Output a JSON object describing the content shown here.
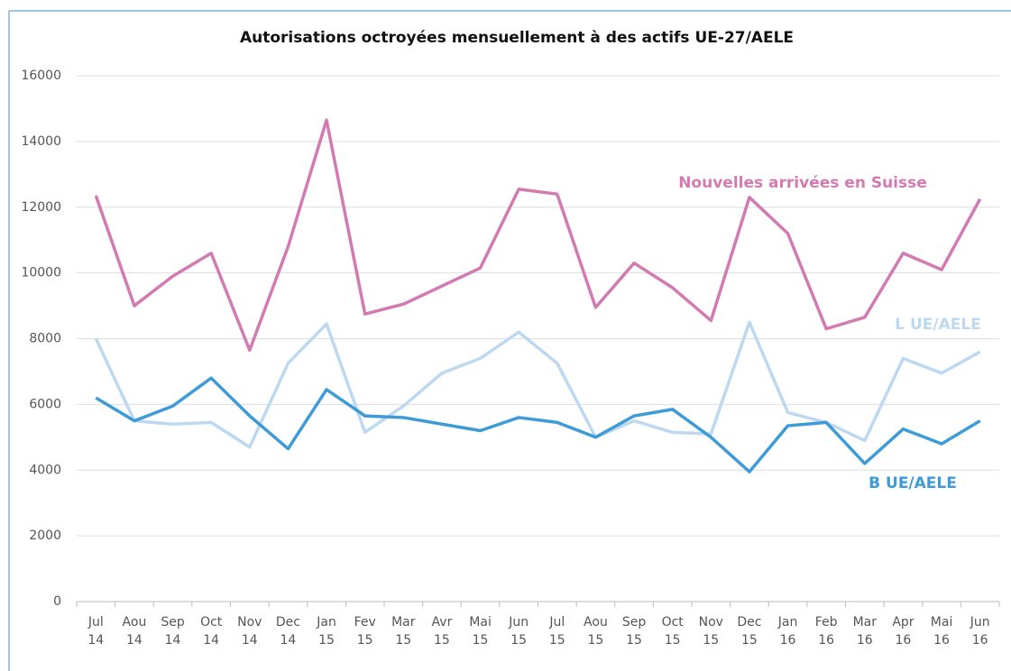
{
  "chart_data": {
    "type": "line",
    "title": "Autorisations octroyées mensuellement à des actifs UE-27/AELE",
    "categories": [
      "Jul 14",
      "Aou 14",
      "Sep 14",
      "Oct 14",
      "Nov 14",
      "Dec 14",
      "Jan 15",
      "Fev 15",
      "Mar 15",
      "Avr 15",
      "Mai 15",
      "Jun 15",
      "Jul 15",
      "Aou 15",
      "Sep 15",
      "Oct 15",
      "Nov 15",
      "Dec 15",
      "Jan 16",
      "Feb 16",
      "Mar 16",
      "Apr 16",
      "Mai 16",
      "Jun 16"
    ],
    "series": [
      {
        "name": "Nouvelles arrivées en Suisse",
        "color": "#d27ab2",
        "values": [
          12350,
          9000,
          9900,
          10600,
          7650,
          10800,
          14650,
          8750,
          9050,
          9600,
          10150,
          12550,
          12400,
          8950,
          10300,
          9550,
          8550,
          12300,
          11200,
          8300,
          8650,
          10600,
          10100,
          12250
        ]
      },
      {
        "name": "L UE/AELE",
        "color": "#bdd8f1",
        "values": [
          8000,
          5500,
          5400,
          5450,
          4700,
          7250,
          8450,
          5150,
          5950,
          6950,
          7400,
          8200,
          7250,
          5000,
          5500,
          5150,
          5100,
          8500,
          5750,
          5450,
          4900,
          7400,
          6950,
          7600
        ]
      },
      {
        "name": "B UE/AELE",
        "color": "#3e9bd7",
        "values": [
          6200,
          5500,
          5950,
          6800,
          5650,
          4650,
          6450,
          5650,
          5600,
          5400,
          5200,
          5600,
          5450,
          5000,
          5650,
          5850,
          5000,
          3950,
          5350,
          5450,
          4200,
          5250,
          4800,
          5500
        ]
      }
    ],
    "ylim": [
      0,
      16000
    ],
    "yticks": [
      0,
      2000,
      4000,
      6000,
      8000,
      10000,
      12000,
      14000,
      16000
    ],
    "grid": true
  }
}
